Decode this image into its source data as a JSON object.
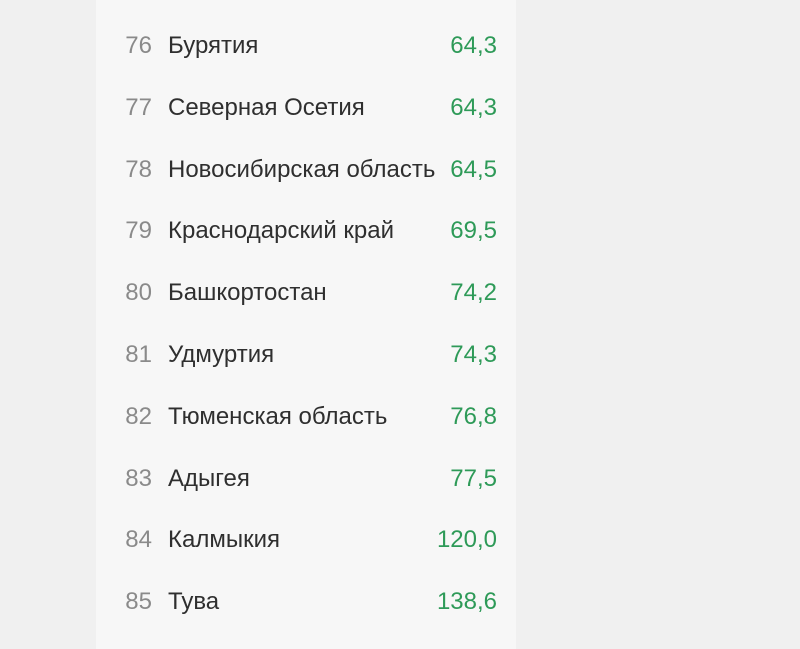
{
  "table": {
    "rows": [
      [
        "76",
        "Бурятия",
        "64,3"
      ],
      [
        "77",
        "Северная Осетия",
        "64,3"
      ],
      [
        "78",
        "Новосибирская область",
        "64,5"
      ],
      [
        "79",
        "Краснодарский край",
        "69,5"
      ],
      [
        "80",
        "Башкортостан",
        "74,2"
      ],
      [
        "81",
        "Удмуртия",
        "74,3"
      ],
      [
        "82",
        "Тюменская область",
        "76,8"
      ],
      [
        "83",
        "Адыгея",
        "77,5"
      ],
      [
        "84",
        "Калмыкия",
        "120,0"
      ],
      [
        "85",
        "Тува",
        "138,6"
      ]
    ]
  }
}
